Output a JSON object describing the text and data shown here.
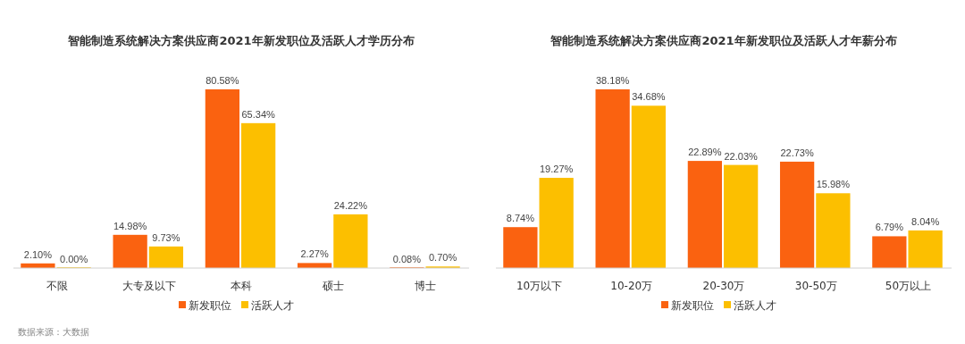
{
  "chart_data": [
    {
      "type": "bar",
      "title": "智能制造系统解决方案供应商2021年新发职位及活跃人才学历分布",
      "categories": [
        "不限",
        "大专及以下",
        "本科",
        "硕士",
        "博士"
      ],
      "legend": "bottom",
      "annotations": [
        "数据来源：大数据"
      ],
      "series": [
        {
          "name": "新发职位",
          "color": "#fa6210",
          "values": [
            2.1,
            14.98,
            80.58,
            2.27,
            0.08
          ],
          "value_labels": [
            "2.10%",
            "14.98%",
            "80.58%",
            "2.27%",
            "0.08%"
          ]
        },
        {
          "name": "活跃人才",
          "color": "#fcbf00",
          "values": [
            0.0,
            9.73,
            65.34,
            24.22,
            0.7
          ],
          "value_labels": [
            "0.00%",
            "9.73%",
            "65.34%",
            "24.22%",
            "0.70%"
          ]
        }
      ]
    },
    {
      "type": "bar",
      "title": "智能制造系统解决方案供应商2021年新发职位及活跃人才年薪分布",
      "categories": [
        "10万以下",
        "10-20万",
        "20-30万",
        "30-50万",
        "50万以上"
      ],
      "legend": "bottom",
      "series": [
        {
          "name": "新发职位",
          "color": "#fa6210",
          "values": [
            8.74,
            38.18,
            22.89,
            22.73,
            6.79
          ],
          "value_labels": [
            "8.74%",
            "38.18%",
            "22.89%",
            "22.73%",
            "6.79%"
          ]
        },
        {
          "name": "活跃人才",
          "color": "#fcbf00",
          "values": [
            19.27,
            34.68,
            22.03,
            15.98,
            8.04
          ],
          "value_labels": [
            "19.27%",
            "34.68%",
            "22.03%",
            "15.98%",
            "8.04%"
          ]
        }
      ]
    }
  ]
}
